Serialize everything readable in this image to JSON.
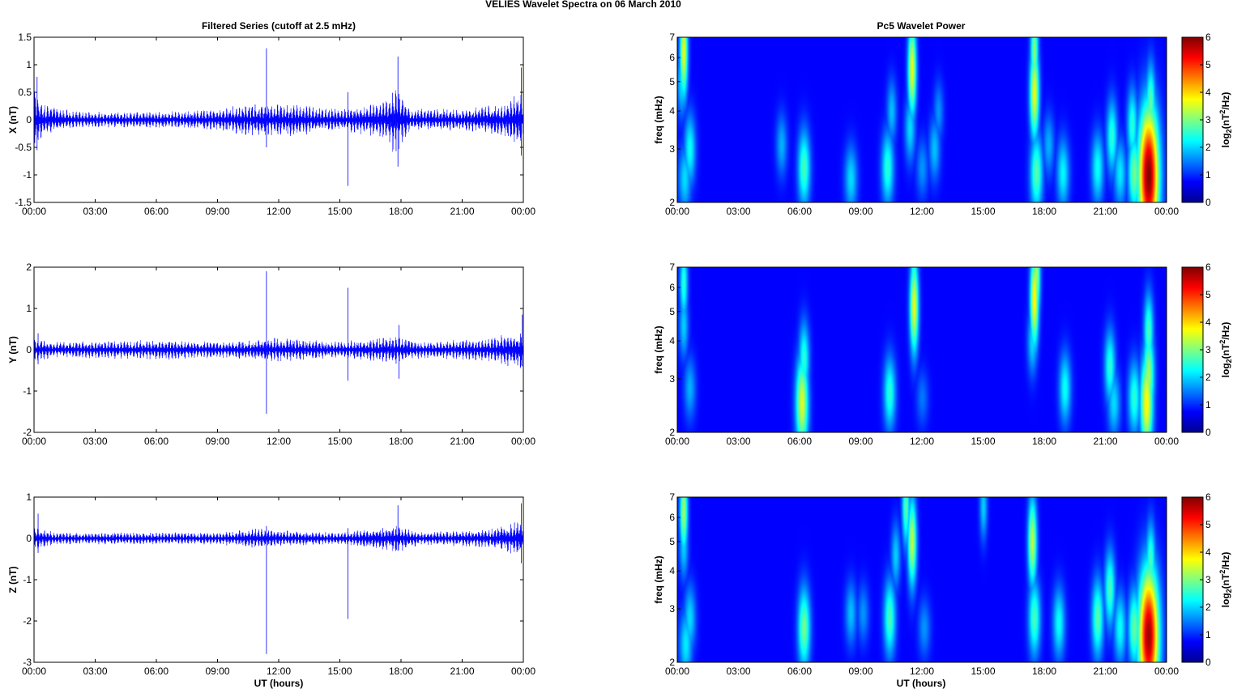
{
  "figure": {
    "suptitle": "VELIES Wavelet Spectra on 06 March      2010",
    "left_title": "Filtered Series (cutoff at 2.5 mHz)",
    "right_title": "Pc5 Wavelet Power",
    "xlabel": "UT (hours)"
  },
  "colors": {
    "trace": "#0000ff",
    "axis": "#000000",
    "background": "#ffffff",
    "colormap": "jet"
  },
  "chart_data": [
    {
      "type": "line",
      "id": "x",
      "ylabel": "X (nT)",
      "xlim": [
        "00:00",
        "24:00"
      ],
      "ylim": [
        -1.5,
        1.5
      ],
      "xticks": [
        "00:00",
        "03:00",
        "06:00",
        "09:00",
        "12:00",
        "15:00",
        "18:00",
        "21:00",
        "00:00"
      ],
      "yticks": [
        "1.5",
        "1",
        "0.5",
        "0",
        "-0.5",
        "-1",
        "-1.5"
      ],
      "yvals": [
        1.5,
        1,
        0.5,
        0,
        -0.5,
        -1,
        -1.5
      ],
      "envelope": [
        {
          "t": 0.0,
          "a": 0.55
        },
        {
          "t": 0.5,
          "a": 0.3
        },
        {
          "t": 2.0,
          "a": 0.15
        },
        {
          "t": 6.0,
          "a": 0.15
        },
        {
          "t": 9.0,
          "a": 0.2
        },
        {
          "t": 10.5,
          "a": 0.3
        },
        {
          "t": 12.5,
          "a": 0.3
        },
        {
          "t": 15.0,
          "a": 0.2
        },
        {
          "t": 17.2,
          "a": 0.35
        },
        {
          "t": 17.7,
          "a": 0.65
        },
        {
          "t": 18.5,
          "a": 0.2
        },
        {
          "t": 21.0,
          "a": 0.2
        },
        {
          "t": 23.0,
          "a": 0.3
        },
        {
          "t": 24.0,
          "a": 0.55
        }
      ],
      "spikes": [
        {
          "t": 0.15,
          "max": 0.78,
          "min": -0.55
        },
        {
          "t": 11.4,
          "max": 1.3,
          "min": -0.5
        },
        {
          "t": 15.4,
          "max": 0.5,
          "min": -1.2
        },
        {
          "t": 17.85,
          "max": 1.15,
          "min": -0.85
        },
        {
          "t": 23.9,
          "max": 0.95,
          "min": -0.65
        }
      ],
      "series": [
        {
          "name": "",
          "color": "#0000ff"
        }
      ]
    },
    {
      "type": "line",
      "id": "y",
      "ylabel": "Y (nT)",
      "xlim": [
        "00:00",
        "24:00"
      ],
      "ylim": [
        -2,
        2
      ],
      "xticks": [
        "00:00",
        "03:00",
        "06:00",
        "09:00",
        "12:00",
        "15:00",
        "18:00",
        "21:00",
        "00:00"
      ],
      "yticks": [
        "2",
        "1",
        "0",
        "-1",
        "-2"
      ],
      "yvals": [
        2,
        1,
        0,
        -1,
        -2
      ],
      "envelope": [
        {
          "t": 0.0,
          "a": 0.3
        },
        {
          "t": 1.0,
          "a": 0.2
        },
        {
          "t": 6.5,
          "a": 0.25
        },
        {
          "t": 9.0,
          "a": 0.2
        },
        {
          "t": 11.0,
          "a": 0.25
        },
        {
          "t": 12.0,
          "a": 0.3
        },
        {
          "t": 15.0,
          "a": 0.2
        },
        {
          "t": 17.8,
          "a": 0.35
        },
        {
          "t": 19.0,
          "a": 0.2
        },
        {
          "t": 22.5,
          "a": 0.3
        },
        {
          "t": 24.0,
          "a": 0.5
        }
      ],
      "spikes": [
        {
          "t": 0.2,
          "max": 0.4,
          "min": -0.35
        },
        {
          "t": 11.4,
          "max": 1.9,
          "min": -1.55
        },
        {
          "t": 15.4,
          "max": 1.5,
          "min": -0.75
        },
        {
          "t": 17.9,
          "max": 0.6,
          "min": -0.7
        },
        {
          "t": 23.95,
          "max": 0.85,
          "min": -0.4
        }
      ],
      "series": [
        {
          "name": "",
          "color": "#0000ff"
        }
      ]
    },
    {
      "type": "line",
      "id": "z",
      "ylabel": "Z (nT)",
      "xlim": [
        "00:00",
        "24:00"
      ],
      "ylim": [
        -3,
        1
      ],
      "xticks": [
        "00:00",
        "03:00",
        "06:00",
        "09:00",
        "12:00",
        "15:00",
        "18:00",
        "21:00",
        "00:00"
      ],
      "yticks": [
        "1",
        "0",
        "-1",
        "-2",
        "-3"
      ],
      "yvals": [
        1,
        0,
        -1,
        -2,
        -3
      ],
      "envelope": [
        {
          "t": 0.0,
          "a": 0.3
        },
        {
          "t": 1.0,
          "a": 0.15
        },
        {
          "t": 6.0,
          "a": 0.15
        },
        {
          "t": 9.0,
          "a": 0.15
        },
        {
          "t": 11.0,
          "a": 0.25
        },
        {
          "t": 12.0,
          "a": 0.2
        },
        {
          "t": 15.0,
          "a": 0.15
        },
        {
          "t": 17.8,
          "a": 0.35
        },
        {
          "t": 19.0,
          "a": 0.15
        },
        {
          "t": 22.5,
          "a": 0.25
        },
        {
          "t": 24.0,
          "a": 0.5
        }
      ],
      "spikes": [
        {
          "t": 0.2,
          "max": 0.6,
          "min": -0.35
        },
        {
          "t": 11.4,
          "max": 0.3,
          "min": -2.8
        },
        {
          "t": 15.4,
          "max": 0.25,
          "min": -1.95
        },
        {
          "t": 17.85,
          "max": 0.8,
          "min": -0.3
        },
        {
          "t": 23.9,
          "max": 0.85,
          "min": -0.6
        }
      ],
      "series": [
        {
          "name": "",
          "color": "#0000ff"
        }
      ]
    },
    {
      "type": "heatmap",
      "id": "wx",
      "ylabel": "freq (mHz)",
      "colorbar_label": "log2(nT2/Hz)",
      "xlim": [
        "00:00",
        "24:00"
      ],
      "ylim": [
        2,
        7
      ],
      "yscale": "log",
      "clim": [
        0,
        6
      ],
      "xticks": [
        "00:00",
        "03:00",
        "06:00",
        "09:00",
        "12:00",
        "15:00",
        "18:00",
        "21:00",
        "00:00"
      ],
      "yticks": [
        "7",
        "6",
        "5",
        "4",
        "3",
        "2"
      ],
      "yvals": [
        7,
        6,
        5,
        4,
        3,
        2
      ],
      "cticks": [
        "6",
        "5",
        "4",
        "3",
        "2",
        "1",
        "0"
      ],
      "blobs": [
        {
          "t": 0.3,
          "f": 6.3,
          "p": 3.3
        },
        {
          "t": 0.2,
          "f": 5.0,
          "p": 1.6
        },
        {
          "t": 0.6,
          "f": 3.0,
          "p": 1.8
        },
        {
          "t": 0.35,
          "f": 2.4,
          "p": 1.5
        },
        {
          "t": 5.1,
          "f": 3.1,
          "p": 1.2
        },
        {
          "t": 6.2,
          "f": 2.6,
          "p": 2.2
        },
        {
          "t": 8.5,
          "f": 2.4,
          "p": 1.5
        },
        {
          "t": 10.3,
          "f": 2.6,
          "p": 2.0
        },
        {
          "t": 10.5,
          "f": 4.0,
          "p": 1.3
        },
        {
          "t": 11.5,
          "f": 5.5,
          "p": 3.3
        },
        {
          "t": 11.4,
          "f": 3.5,
          "p": 1.5
        },
        {
          "t": 12.0,
          "f": 2.6,
          "p": 1.0
        },
        {
          "t": 12.6,
          "f": 3.0,
          "p": 1.3
        },
        {
          "t": 12.8,
          "f": 4.0,
          "p": 1.0
        },
        {
          "t": 17.5,
          "f": 4.6,
          "p": 3.3
        },
        {
          "t": 17.5,
          "f": 6.3,
          "p": 2.6
        },
        {
          "t": 17.6,
          "f": 2.5,
          "p": 2.3
        },
        {
          "t": 18.2,
          "f": 3.1,
          "p": 1.2
        },
        {
          "t": 18.9,
          "f": 2.5,
          "p": 1.7
        },
        {
          "t": 20.6,
          "f": 2.6,
          "p": 1.8
        },
        {
          "t": 21.3,
          "f": 3.3,
          "p": 2.0
        },
        {
          "t": 21.7,
          "f": 2.5,
          "p": 1.6
        },
        {
          "t": 22.4,
          "f": 2.5,
          "p": 2.5
        },
        {
          "t": 22.3,
          "f": 3.6,
          "p": 2.0
        },
        {
          "t": 23.1,
          "f": 2.45,
          "p": 6.0
        },
        {
          "t": 23.2,
          "f": 3.0,
          "p": 3.5
        },
        {
          "t": 23.2,
          "f": 4.2,
          "p": 2.4
        }
      ]
    },
    {
      "type": "heatmap",
      "id": "wy",
      "ylabel": "freq (mHz)",
      "colorbar_label": "log2(nT2/Hz)",
      "xlim": [
        "00:00",
        "24:00"
      ],
      "ylim": [
        2,
        7
      ],
      "yscale": "log",
      "clim": [
        0,
        6
      ],
      "xticks": [
        "00:00",
        "03:00",
        "06:00",
        "09:00",
        "12:00",
        "15:00",
        "18:00",
        "21:00",
        "00:00"
      ],
      "yticks": [
        "7",
        "6",
        "5",
        "4",
        "3",
        "2"
      ],
      "yvals": [
        7,
        6,
        5,
        4,
        3,
        2
      ],
      "cticks": [
        "6",
        "5",
        "4",
        "3",
        "2",
        "1",
        "0"
      ],
      "blobs": [
        {
          "t": 0.3,
          "f": 6.2,
          "p": 2.0
        },
        {
          "t": 0.3,
          "f": 4.5,
          "p": 1.4
        },
        {
          "t": 0.6,
          "f": 2.8,
          "p": 1.2
        },
        {
          "t": 6.1,
          "f": 2.5,
          "p": 3.2
        },
        {
          "t": 6.2,
          "f": 3.5,
          "p": 2.0
        },
        {
          "t": 10.4,
          "f": 2.7,
          "p": 2.0
        },
        {
          "t": 11.6,
          "f": 5.2,
          "p": 3.3
        },
        {
          "t": 11.6,
          "f": 6.3,
          "p": 2.2
        },
        {
          "t": 12.0,
          "f": 2.6,
          "p": 0.8
        },
        {
          "t": 17.5,
          "f": 5.5,
          "p": 3.5
        },
        {
          "t": 17.6,
          "f": 6.6,
          "p": 2.8
        },
        {
          "t": 17.4,
          "f": 4.0,
          "p": 1.5
        },
        {
          "t": 19.0,
          "f": 2.8,
          "p": 1.8
        },
        {
          "t": 21.2,
          "f": 3.3,
          "p": 2.0
        },
        {
          "t": 21.4,
          "f": 2.5,
          "p": 1.5
        },
        {
          "t": 22.4,
          "f": 2.6,
          "p": 2.0
        },
        {
          "t": 23.0,
          "f": 2.5,
          "p": 3.5
        },
        {
          "t": 23.1,
          "f": 3.1,
          "p": 2.8
        },
        {
          "t": 23.1,
          "f": 4.3,
          "p": 2.2
        }
      ]
    },
    {
      "type": "heatmap",
      "id": "wz",
      "ylabel": "freq (mHz)",
      "colorbar_label": "log2(nT2/Hz)",
      "xlim": [
        "00:00",
        "24:00"
      ],
      "ylim": [
        2,
        7
      ],
      "yscale": "log",
      "clim": [
        0,
        6
      ],
      "xticks": [
        "00:00",
        "03:00",
        "06:00",
        "09:00",
        "12:00",
        "15:00",
        "18:00",
        "21:00",
        "00:00"
      ],
      "yticks": [
        "7",
        "6",
        "5",
        "4",
        "3",
        "2"
      ],
      "yvals": [
        7,
        6,
        5,
        4,
        3,
        2
      ],
      "cticks": [
        "6",
        "5",
        "4",
        "3",
        "2",
        "1",
        "0"
      ],
      "blobs": [
        {
          "t": 0.3,
          "f": 6.3,
          "p": 2.8
        },
        {
          "t": 0.3,
          "f": 4.8,
          "p": 1.4
        },
        {
          "t": 0.6,
          "f": 2.8,
          "p": 1.5
        },
        {
          "t": 0.4,
          "f": 2.3,
          "p": 1.6
        },
        {
          "t": 6.2,
          "f": 2.6,
          "p": 2.5
        },
        {
          "t": 8.5,
          "f": 2.9,
          "p": 1.3
        },
        {
          "t": 9.1,
          "f": 2.9,
          "p": 1.0
        },
        {
          "t": 10.4,
          "f": 2.8,
          "p": 2.2
        },
        {
          "t": 10.7,
          "f": 4.5,
          "p": 1.4
        },
        {
          "t": 11.5,
          "f": 5.0,
          "p": 3.0
        },
        {
          "t": 11.2,
          "f": 6.5,
          "p": 2.3
        },
        {
          "t": 12.1,
          "f": 2.6,
          "p": 1.0
        },
        {
          "t": 15.0,
          "f": 6.5,
          "p": 1.4
        },
        {
          "t": 17.4,
          "f": 5.0,
          "p": 3.0
        },
        {
          "t": 17.5,
          "f": 2.8,
          "p": 2.2
        },
        {
          "t": 18.7,
          "f": 2.7,
          "p": 1.8
        },
        {
          "t": 20.6,
          "f": 2.8,
          "p": 2.3
        },
        {
          "t": 21.2,
          "f": 3.5,
          "p": 2.2
        },
        {
          "t": 21.7,
          "f": 2.6,
          "p": 1.8
        },
        {
          "t": 22.4,
          "f": 2.6,
          "p": 2.4
        },
        {
          "t": 23.1,
          "f": 2.45,
          "p": 5.8
        },
        {
          "t": 23.2,
          "f": 3.1,
          "p": 3.2
        },
        {
          "t": 23.2,
          "f": 4.3,
          "p": 2.2
        }
      ]
    }
  ]
}
